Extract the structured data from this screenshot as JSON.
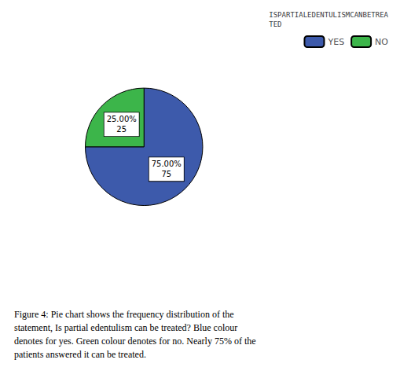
{
  "chart_data": {
    "type": "pie",
    "title": "ISPARTIALEDENTULISMCANBETREA\nTED",
    "categories": [
      "YES",
      "NO"
    ],
    "values": [
      75.0,
      25.0
    ],
    "value_labels": [
      "75.00%\n75",
      "25.00%\n25"
    ],
    "colors": [
      "#3d5aab",
      "#3cb54a"
    ],
    "data_labels": true,
    "legend": "upper right",
    "caption": "Figure 4: Pie chart shows the frequency distribution of the\nstatement, Is partial edentulism can be treated? Blue colour\ndenotes for yes. Green colour denotes for no. Nearly 75% of the\npatients answered it can be treated."
  }
}
